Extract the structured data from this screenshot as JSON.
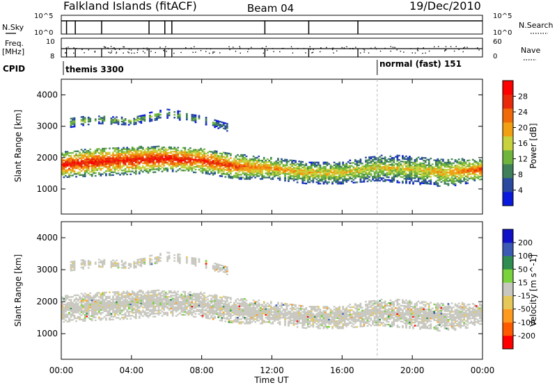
{
  "header": {
    "station": "Falkland Islands (fitACF)",
    "beam": "Beam 04",
    "date": "19/Dec/2010"
  },
  "left_labels": {
    "nsky": "N.Sky",
    "freq": "Freq.",
    "freq_unit": "[MHz]",
    "cpid": "CPID"
  },
  "right_labels": {
    "nsearch": "N.Search",
    "nave": "Nave"
  },
  "panel_ticks": {
    "noise_left": [
      "10^5",
      "10^0"
    ],
    "noise_right": [
      "10^5",
      "10^0"
    ],
    "freq_left": [
      "10",
      "8"
    ],
    "freq_right": [
      "60",
      "0"
    ]
  },
  "cpid": {
    "mode1": "themis 3300",
    "mode2": "normal (fast) 151",
    "switch_hour": 18
  },
  "colors": {
    "power": [
      "#0a1adc",
      "#2a4aa0",
      "#3f7f5a",
      "#6fb43c",
      "#c8d23c",
      "#f0a012",
      "#f06a0a",
      "#e82a0a",
      "#ff0000"
    ],
    "velocity": [
      "#ff0000",
      "#ff5a00",
      "#ff9a1e",
      "#e6c85a",
      "#c8c8c0",
      "#7ad23c",
      "#2e8c50",
      "#3a5ab4",
      "#1010c8"
    ]
  },
  "chart_data": [
    {
      "type": "heatmap",
      "title": "",
      "xlabel": "",
      "ylabel": "Slant Range [km]",
      "xlim": [
        0,
        24
      ],
      "ylim": [
        200,
        4500
      ],
      "x_ticks": [
        "00:00",
        "04:00",
        "08:00",
        "12:00",
        "16:00",
        "20:00",
        "00:00"
      ],
      "y_ticks": [
        "1000",
        "2000",
        "3000",
        "4000"
      ],
      "colorbar": {
        "label": "Power [dB]",
        "ticks": [
          "4",
          "8",
          "12",
          "16",
          "20",
          "24",
          "28"
        ],
        "range": [
          0,
          30
        ]
      },
      "bands": [
        {
          "name": "main",
          "hours": [
            0,
            2,
            4,
            6,
            8,
            10,
            12,
            14,
            16,
            18,
            20,
            22,
            24
          ],
          "center_km": [
            1750,
            1850,
            1900,
            1950,
            1900,
            1700,
            1650,
            1500,
            1500,
            1650,
            1600,
            1500,
            1600
          ],
          "width_km": [
            800,
            900,
            900,
            800,
            800,
            800,
            700,
            700,
            700,
            800,
            900,
            900,
            700
          ],
          "peak_db": [
            28,
            27,
            27,
            28,
            26,
            24,
            20,
            18,
            17,
            16,
            16,
            18,
            24
          ]
        },
        {
          "name": "upper",
          "hours": [
            0.5,
            2,
            4,
            6,
            8,
            9.5
          ],
          "center_km": [
            3100,
            3200,
            3150,
            3400,
            3200,
            2950
          ],
          "width_km": [
            300,
            250,
            250,
            300,
            250,
            250
          ],
          "peak_db": [
            14,
            12,
            12,
            10,
            10,
            8
          ]
        }
      ]
    },
    {
      "type": "heatmap",
      "title": "",
      "xlabel": "Time UT",
      "ylabel": "Slant Range [km]",
      "xlim": [
        0,
        24
      ],
      "ylim": [
        200,
        4500
      ],
      "x_ticks": [
        "00:00",
        "04:00",
        "08:00",
        "12:00",
        "16:00",
        "20:00",
        "00:00"
      ],
      "y_ticks": [
        "1000",
        "2000",
        "3000",
        "4000"
      ],
      "colorbar": {
        "label": "Velocity [m s^-1]",
        "ticks": [
          "200",
          "100",
          "50",
          "15",
          "-15",
          "-50",
          "-100",
          "-200"
        ],
        "range": [
          -250,
          250
        ]
      },
      "dominant_velocity_m_s": 0
    }
  ]
}
